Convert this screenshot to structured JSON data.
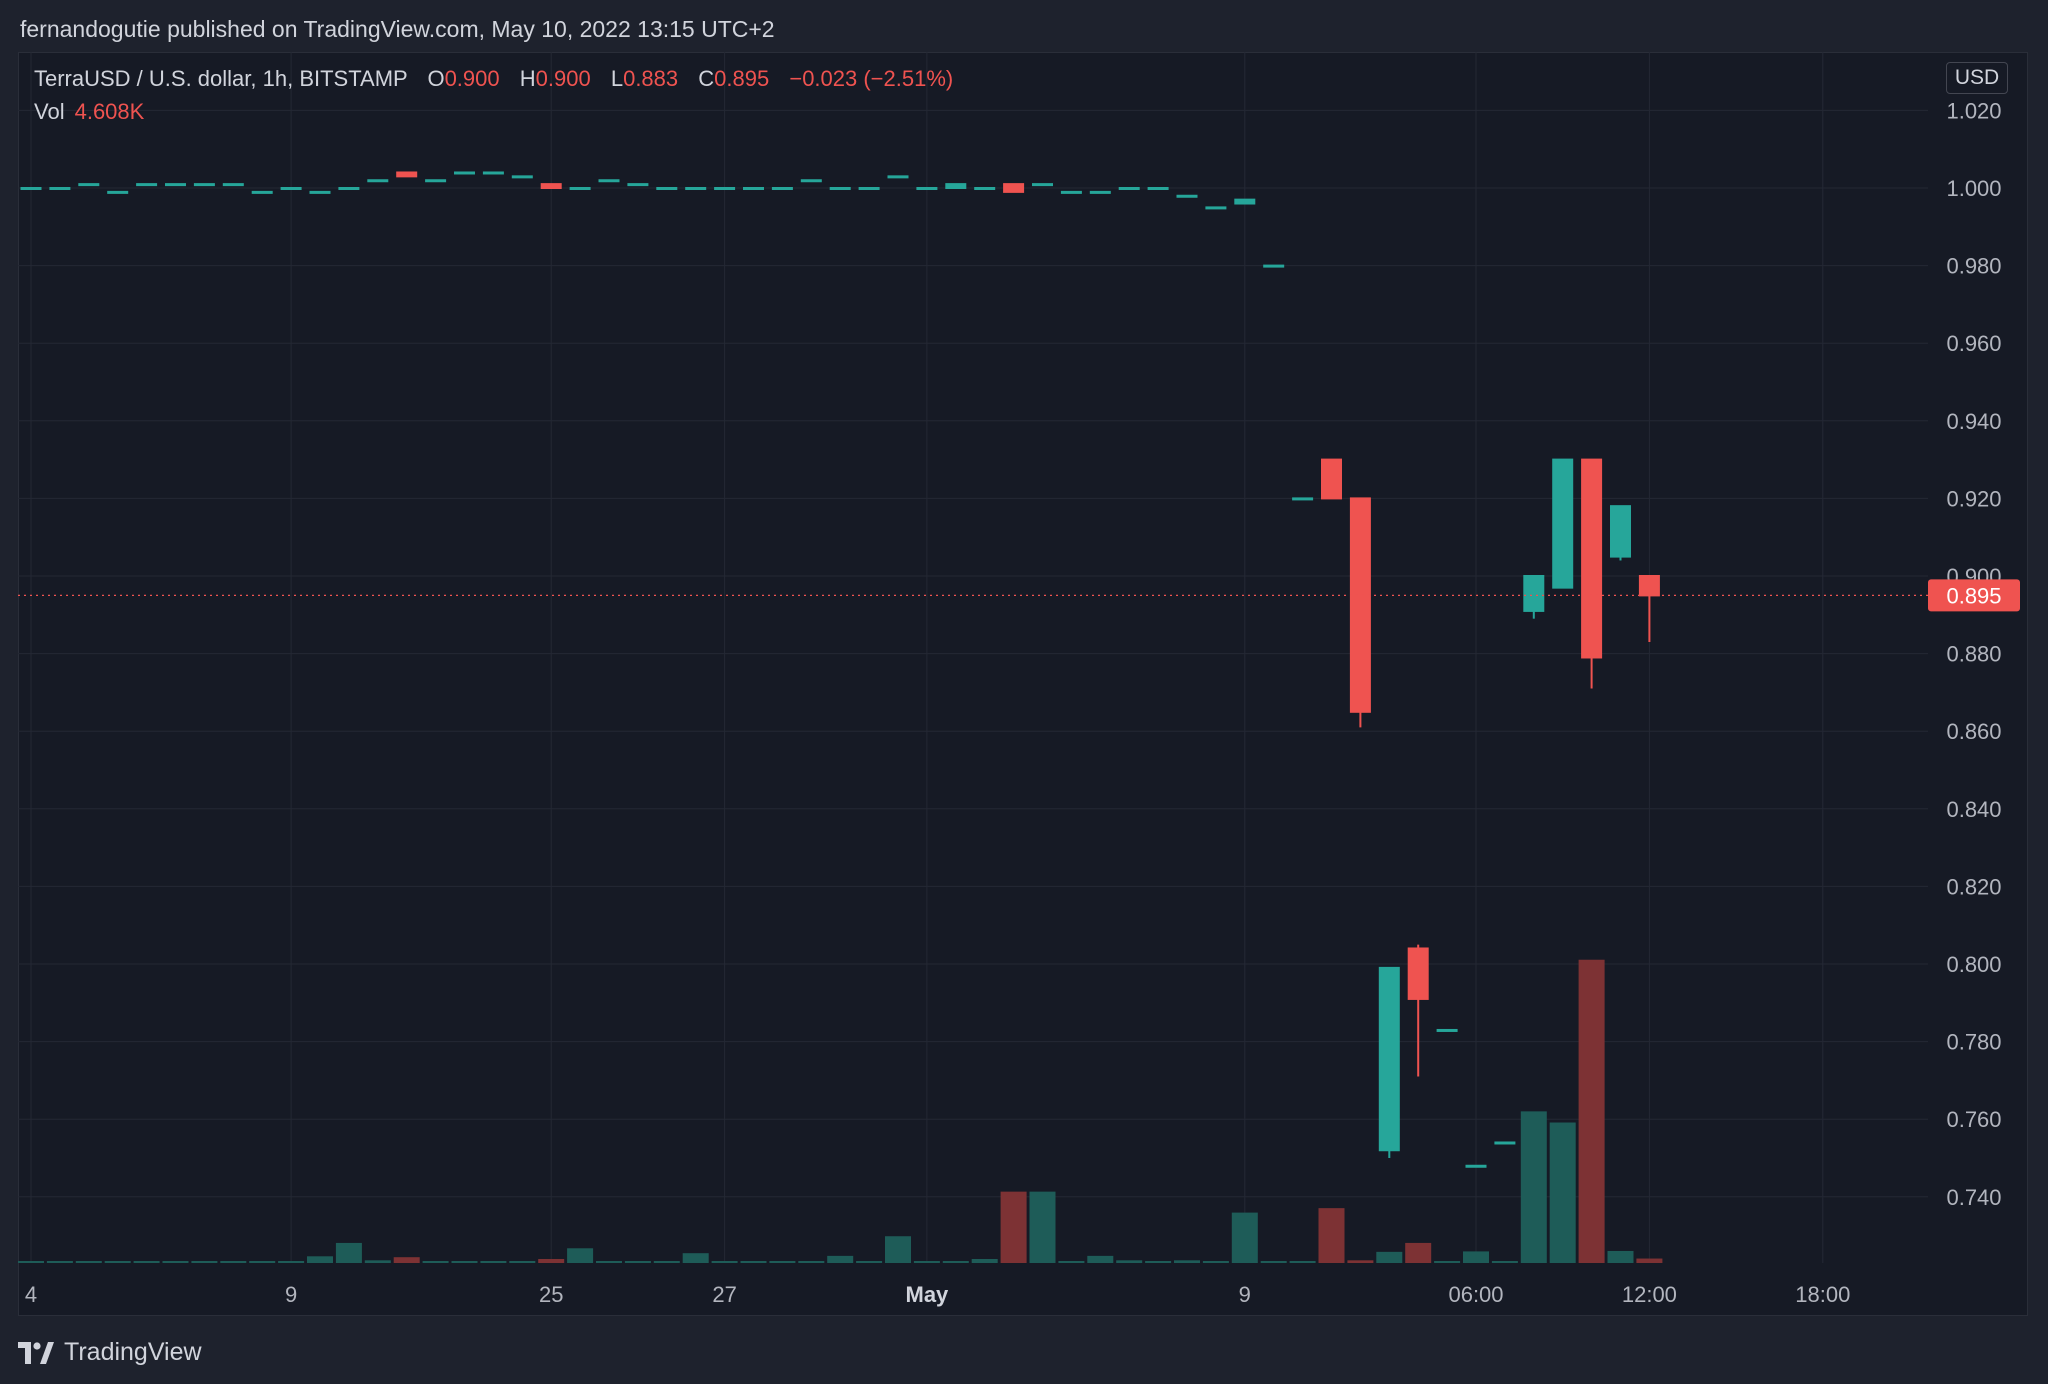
{
  "header": {
    "publisher_text": "fernandogutie published on TradingView.com, May 10, 2022 13:15 UTC+2"
  },
  "legend": {
    "symbol": "TerraUSD / U.S. dollar, 1h, BITSTAMP",
    "open_label": "O",
    "open": "0.900",
    "high_label": "H",
    "high": "0.900",
    "low_label": "L",
    "low": "0.883",
    "close_label": "C",
    "close": "0.895",
    "change": "−0.023 (−2.51%)",
    "vol_label": "Vol",
    "vol": "4.608K"
  },
  "currency_button": "USD",
  "last_price_label": "0.895",
  "footer": {
    "brand": "TradingView",
    "logo_icon": "tradingview-logo-icon"
  },
  "colors": {
    "up": "#26a69a",
    "down": "#ef5350",
    "vol_up": "#1e5c58",
    "vol_down": "#7d3234",
    "background": "#161a25",
    "grid": "#242834"
  },
  "chart_data": {
    "type": "candlestick",
    "title": "TerraUSD / U.S. dollar, 1h, BITSTAMP",
    "ylim": [
      0.72,
      1.028
    ],
    "y_ticks": [
      "1.020",
      "1.000",
      "0.980",
      "0.960",
      "0.940",
      "0.920",
      "0.900",
      "0.880",
      "0.860",
      "0.840",
      "0.820",
      "0.800",
      "0.780",
      "0.760",
      "0.740"
    ],
    "x_ticks": [
      {
        "i": 0,
        "label": "4",
        "bold": false
      },
      {
        "i": 9,
        "label": "9",
        "bold": false
      },
      {
        "i": 18,
        "label": "25",
        "bold": false
      },
      {
        "i": 24,
        "label": "27",
        "bold": false
      },
      {
        "i": 31,
        "label": "May",
        "bold": true
      },
      {
        "i": 42,
        "label": "9",
        "bold": false
      },
      {
        "i": 50,
        "label": "06:00",
        "bold": false
      },
      {
        "i": 56,
        "label": "12:00",
        "bold": false
      },
      {
        "i": 62,
        "label": "18:00",
        "bold": false
      }
    ],
    "last_price": 0.895,
    "grid": true,
    "candles": [
      {
        "o": 1.0,
        "h": 1.0,
        "l": 1.0,
        "c": 1.0,
        "v": 0.3
      },
      {
        "o": 1.0,
        "h": 1.0,
        "l": 1.0,
        "c": 1.0,
        "v": 0.3
      },
      {
        "o": 1.001,
        "h": 1.001,
        "l": 1.001,
        "c": 1.001,
        "v": 0.3
      },
      {
        "o": 0.999,
        "h": 0.999,
        "l": 0.999,
        "c": 0.999,
        "v": 0.3
      },
      {
        "o": 1.001,
        "h": 1.001,
        "l": 1.001,
        "c": 1.001,
        "v": 0.3
      },
      {
        "o": 1.001,
        "h": 1.001,
        "l": 1.001,
        "c": 1.001,
        "v": 0.3
      },
      {
        "o": 1.001,
        "h": 1.001,
        "l": 1.001,
        "c": 1.001,
        "v": 0.3
      },
      {
        "o": 1.001,
        "h": 1.001,
        "l": 1.001,
        "c": 1.001,
        "v": 0.3
      },
      {
        "o": 0.999,
        "h": 0.999,
        "l": 0.999,
        "c": 0.999,
        "v": 0.3
      },
      {
        "o": 1.0,
        "h": 1.0,
        "l": 1.0,
        "c": 1.0,
        "v": 0.3
      },
      {
        "o": 0.999,
        "h": 0.999,
        "l": 0.999,
        "c": 0.999,
        "v": 1.5
      },
      {
        "o": 1.0,
        "h": 1.0,
        "l": 1.0,
        "c": 1.0,
        "v": 4.5
      },
      {
        "o": 1.002,
        "h": 1.002,
        "l": 1.002,
        "c": 1.002,
        "v": 0.6
      },
      {
        "o": 1.004,
        "h": 1.004,
        "l": 1.003,
        "c": 1.003,
        "v": 1.3
      },
      {
        "o": 1.002,
        "h": 1.002,
        "l": 1.002,
        "c": 1.002,
        "v": 0.3
      },
      {
        "o": 1.004,
        "h": 1.004,
        "l": 1.004,
        "c": 1.004,
        "v": 0.3
      },
      {
        "o": 1.004,
        "h": 1.004,
        "l": 1.004,
        "c": 1.004,
        "v": 0.3
      },
      {
        "o": 1.003,
        "h": 1.003,
        "l": 1.003,
        "c": 1.003,
        "v": 0.3
      },
      {
        "o": 1.001,
        "h": 1.001,
        "l": 1.0,
        "c": 1.0,
        "v": 0.9
      },
      {
        "o": 1.0,
        "h": 1.0,
        "l": 1.0,
        "c": 1.0,
        "v": 3.3
      },
      {
        "o": 1.002,
        "h": 1.002,
        "l": 1.002,
        "c": 1.002,
        "v": 0.3
      },
      {
        "o": 1.001,
        "h": 1.001,
        "l": 1.001,
        "c": 1.001,
        "v": 0.3
      },
      {
        "o": 1.0,
        "h": 1.0,
        "l": 1.0,
        "c": 1.0,
        "v": 0.3
      },
      {
        "o": 1.0,
        "h": 1.0,
        "l": 1.0,
        "c": 1.0,
        "v": 2.2
      },
      {
        "o": 1.0,
        "h": 1.0,
        "l": 1.0,
        "c": 1.0,
        "v": 0.3
      },
      {
        "o": 1.0,
        "h": 1.0,
        "l": 1.0,
        "c": 1.0,
        "v": 0.3
      },
      {
        "o": 1.0,
        "h": 1.0,
        "l": 1.0,
        "c": 1.0,
        "v": 0.3
      },
      {
        "o": 1.002,
        "h": 1.002,
        "l": 1.002,
        "c": 1.002,
        "v": 0.3
      },
      {
        "o": 1.0,
        "h": 1.0,
        "l": 1.0,
        "c": 1.0,
        "v": 1.6
      },
      {
        "o": 1.0,
        "h": 1.0,
        "l": 1.0,
        "c": 1.0,
        "v": 0.3
      },
      {
        "o": 1.003,
        "h": 1.003,
        "l": 1.003,
        "c": 1.003,
        "v": 6.0
      },
      {
        "o": 1.0,
        "h": 1.0,
        "l": 1.0,
        "c": 1.0,
        "v": 0.3
      },
      {
        "o": 1.0,
        "h": 1.001,
        "l": 1.0,
        "c": 1.001,
        "v": 0.3
      },
      {
        "o": 1.0,
        "h": 1.0,
        "l": 1.0,
        "c": 1.0,
        "v": 0.9
      },
      {
        "o": 1.001,
        "h": 1.001,
        "l": 0.999,
        "c": 0.999,
        "v": 16.0
      },
      {
        "o": 1.001,
        "h": 1.001,
        "l": 1.001,
        "c": 1.001,
        "v": 16.0
      },
      {
        "o": 0.999,
        "h": 0.999,
        "l": 0.999,
        "c": 0.999,
        "v": 0.3
      },
      {
        "o": 0.999,
        "h": 0.999,
        "l": 0.999,
        "c": 0.999,
        "v": 1.6
      },
      {
        "o": 1.0,
        "h": 1.0,
        "l": 1.0,
        "c": 1.0,
        "v": 0.6
      },
      {
        "o": 1.0,
        "h": 1.0,
        "l": 1.0,
        "c": 1.0,
        "v": 0.3
      },
      {
        "o": 0.998,
        "h": 0.998,
        "l": 0.998,
        "c": 0.998,
        "v": 0.6
      },
      {
        "o": 0.995,
        "h": 0.995,
        "l": 0.995,
        "c": 0.995,
        "v": 0.3
      },
      {
        "o": 0.996,
        "h": 0.997,
        "l": 0.996,
        "c": 0.997,
        "v": 11.3
      },
      {
        "o": 0.98,
        "h": 0.98,
        "l": 0.98,
        "c": 0.98,
        "v": 0.3
      },
      {
        "o": 0.92,
        "h": 0.92,
        "l": 0.92,
        "c": 0.92,
        "v": 0.3
      },
      {
        "o": 0.93,
        "h": 0.93,
        "l": 0.92,
        "c": 0.92,
        "v": 12.3
      },
      {
        "o": 0.92,
        "h": 0.92,
        "l": 0.861,
        "c": 0.865,
        "v": 0.6
      },
      {
        "o": 0.752,
        "h": 0.799,
        "l": 0.75,
        "c": 0.799,
        "v": 2.5
      },
      {
        "o": 0.804,
        "h": 0.805,
        "l": 0.771,
        "c": 0.791,
        "v": 4.5
      },
      {
        "o": 0.783,
        "h": 0.783,
        "l": 0.783,
        "c": 0.783,
        "v": 0.3
      },
      {
        "o": 0.748,
        "h": 0.748,
        "l": 0.748,
        "c": 0.748,
        "v": 2.6
      },
      {
        "o": 0.754,
        "h": 0.754,
        "l": 0.754,
        "c": 0.754,
        "v": 0.3
      },
      {
        "o": 0.891,
        "h": 0.9,
        "l": 0.889,
        "c": 0.9,
        "v": 34.0
      },
      {
        "o": 0.897,
        "h": 0.93,
        "l": 0.897,
        "c": 0.93,
        "v": 31.5
      },
      {
        "o": 0.93,
        "h": 0.93,
        "l": 0.871,
        "c": 0.879,
        "v": 68.0
      },
      {
        "o": 0.905,
        "h": 0.918,
        "l": 0.904,
        "c": 0.918,
        "v": 2.7
      },
      {
        "o": 0.9,
        "h": 0.9,
        "l": 0.883,
        "c": 0.895,
        "v": 1.0
      }
    ]
  }
}
